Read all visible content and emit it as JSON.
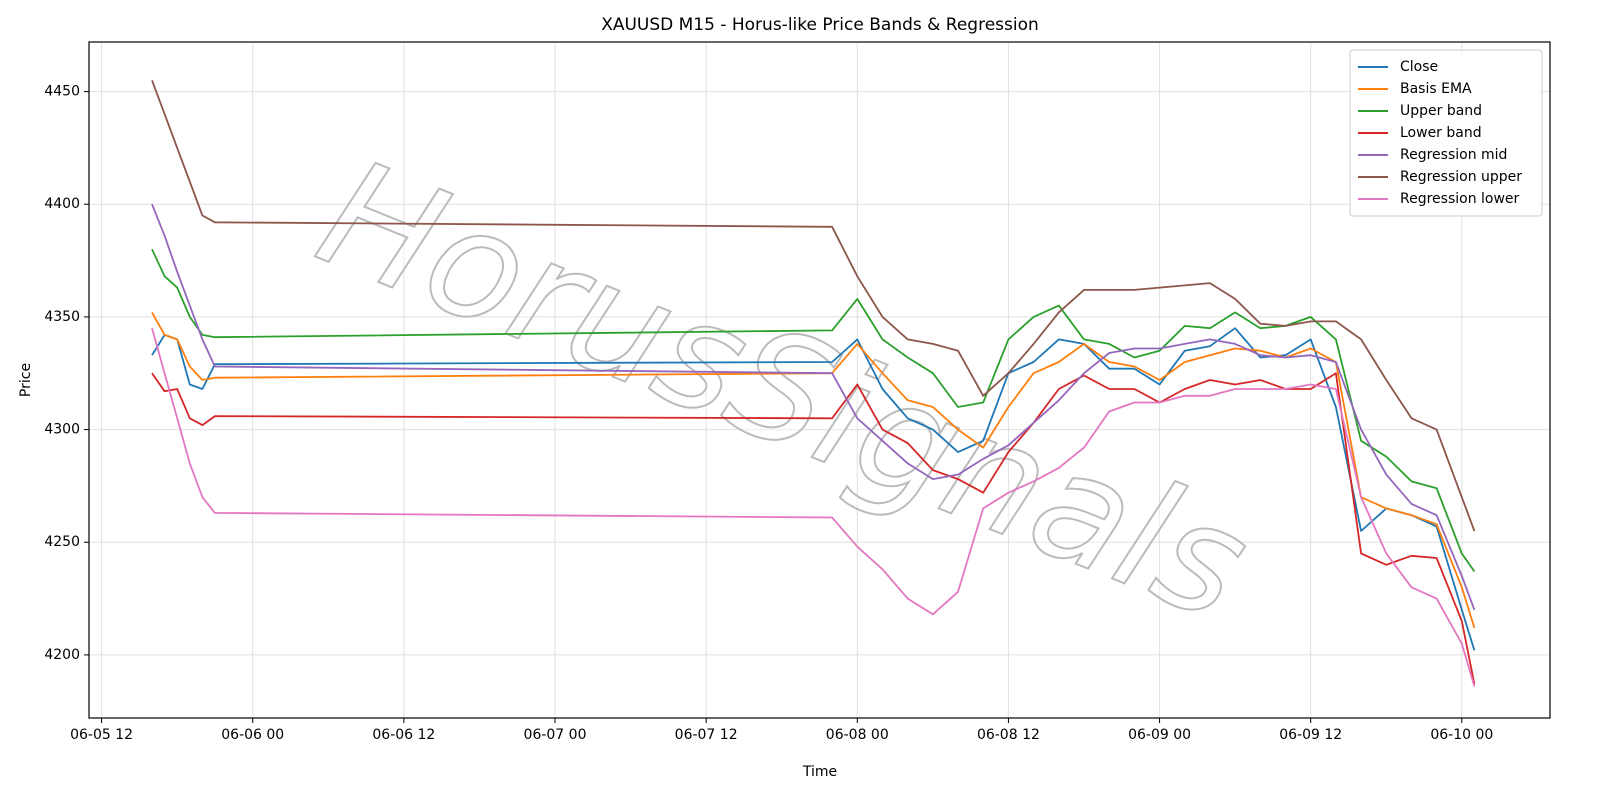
{
  "chart_data": {
    "type": "line",
    "title": "XAUUSD M15 - Horus-like Price Bands & Regression",
    "x_label": "Time",
    "y_label": "Price",
    "watermark": "HorusSignals",
    "grid": true,
    "legend": "upper right",
    "x": [
      "06-05 16",
      "06-05 17",
      "06-05 18",
      "06-05 19",
      "06-05 20",
      "06-05 21",
      "06-07 22",
      "06-08 00",
      "06-08 02",
      "06-08 04",
      "06-08 06",
      "06-08 08",
      "06-08 10",
      "06-08 12",
      "06-08 14",
      "06-08 16",
      "06-08 18",
      "06-08 20",
      "06-08 22",
      "06-09 00",
      "06-09 02",
      "06-09 04",
      "06-09 06",
      "06-09 08",
      "06-09 10",
      "06-09 12",
      "06-09 14",
      "06-09 16",
      "06-09 18",
      "06-09 20",
      "06-09 22",
      "06-10 00",
      "06-10 01"
    ],
    "xlim": [
      "06-05 11",
      "06-10 07"
    ],
    "xticks": [
      "06-05 12",
      "06-06 00",
      "06-06 12",
      "06-07 00",
      "06-07 12",
      "06-08 00",
      "06-08 12",
      "06-09 00",
      "06-09 12",
      "06-10 00"
    ],
    "ylim": [
      4172,
      4472
    ],
    "yticks": [
      4200,
      4250,
      4300,
      4350,
      4400,
      4450
    ],
    "series": [
      {
        "name": "Close",
        "color": "#1f77b4",
        "values": [
          4333,
          4342,
          4340,
          4320,
          4318,
          4329,
          4330,
          4340,
          4318,
          4305,
          4300,
          4290,
          4295,
          4325,
          4330,
          4340,
          4338,
          4327,
          4327,
          4320,
          4335,
          4337,
          4345,
          4332,
          4333,
          4340,
          4310,
          4255,
          4265,
          4262,
          4257,
          4220,
          4202
        ]
      },
      {
        "name": "Basis EMA",
        "color": "#ff7f0e",
        "values": [
          4352,
          4342,
          4340,
          4328,
          4322,
          4323,
          4325,
          4338,
          4325,
          4313,
          4310,
          4300,
          4292,
          4310,
          4325,
          4330,
          4338,
          4330,
          4328,
          4322,
          4330,
          4333,
          4336,
          4335,
          4332,
          4336,
          4330,
          4270,
          4265,
          4262,
          4258,
          4230,
          4212
        ]
      },
      {
        "name": "Upper band",
        "color": "#2ca02c",
        "values": [
          4380,
          4368,
          4363,
          4350,
          4342,
          4341,
          4344,
          4358,
          4340,
          4332,
          4325,
          4310,
          4312,
          4340,
          4350,
          4355,
          4340,
          4338,
          4332,
          4335,
          4346,
          4345,
          4352,
          4345,
          4346,
          4350,
          4340,
          4295,
          4288,
          4277,
          4274,
          4245,
          4237
        ]
      },
      {
        "name": "Lower band",
        "color": "#d62728",
        "values": [
          4325,
          4317,
          4318,
          4305,
          4302,
          4306,
          4305,
          4320,
          4300,
          4294,
          4282,
          4278,
          4272,
          4290,
          4303,
          4318,
          4324,
          4318,
          4318,
          4312,
          4318,
          4322,
          4320,
          4322,
          4318,
          4318,
          4325,
          4245,
          4240,
          4244,
          4243,
          4215,
          4187
        ]
      },
      {
        "name": "Regression mid",
        "color": "#9467bd",
        "values": [
          4400,
          4386,
          4370,
          4355,
          4340,
          4328,
          4325,
          4305,
          4295,
          4285,
          4278,
          4280,
          4287,
          4293,
          4303,
          4313,
          4325,
          4334,
          4336,
          4336,
          4338,
          4340,
          4338,
          4333,
          4332,
          4333,
          4330,
          4300,
          4280,
          4267,
          4262,
          4235,
          4220
        ]
      },
      {
        "name": "Regression upper",
        "color": "#8c564b",
        "values": [
          4455,
          4440,
          4425,
          4410,
          4395,
          4392,
          4390,
          4368,
          4350,
          4340,
          4338,
          4335,
          4315,
          4325,
          4338,
          4352,
          4362,
          4362,
          4362,
          4363,
          4364,
          4365,
          4358,
          4347,
          4346,
          4348,
          4348,
          4340,
          4322,
          4305,
          4300,
          4270,
          4255
        ]
      },
      {
        "name": "Regression lower",
        "color": "#e377c2",
        "values": [
          4345,
          4325,
          4305,
          4285,
          4270,
          4263,
          4261,
          4248,
          4238,
          4225,
          4218,
          4228,
          4265,
          4272,
          4277,
          4283,
          4292,
          4308,
          4312,
          4312,
          4315,
          4315,
          4318,
          4318,
          4318,
          4320,
          4318,
          4270,
          4245,
          4230,
          4225,
          4205,
          4186
        ]
      }
    ]
  }
}
